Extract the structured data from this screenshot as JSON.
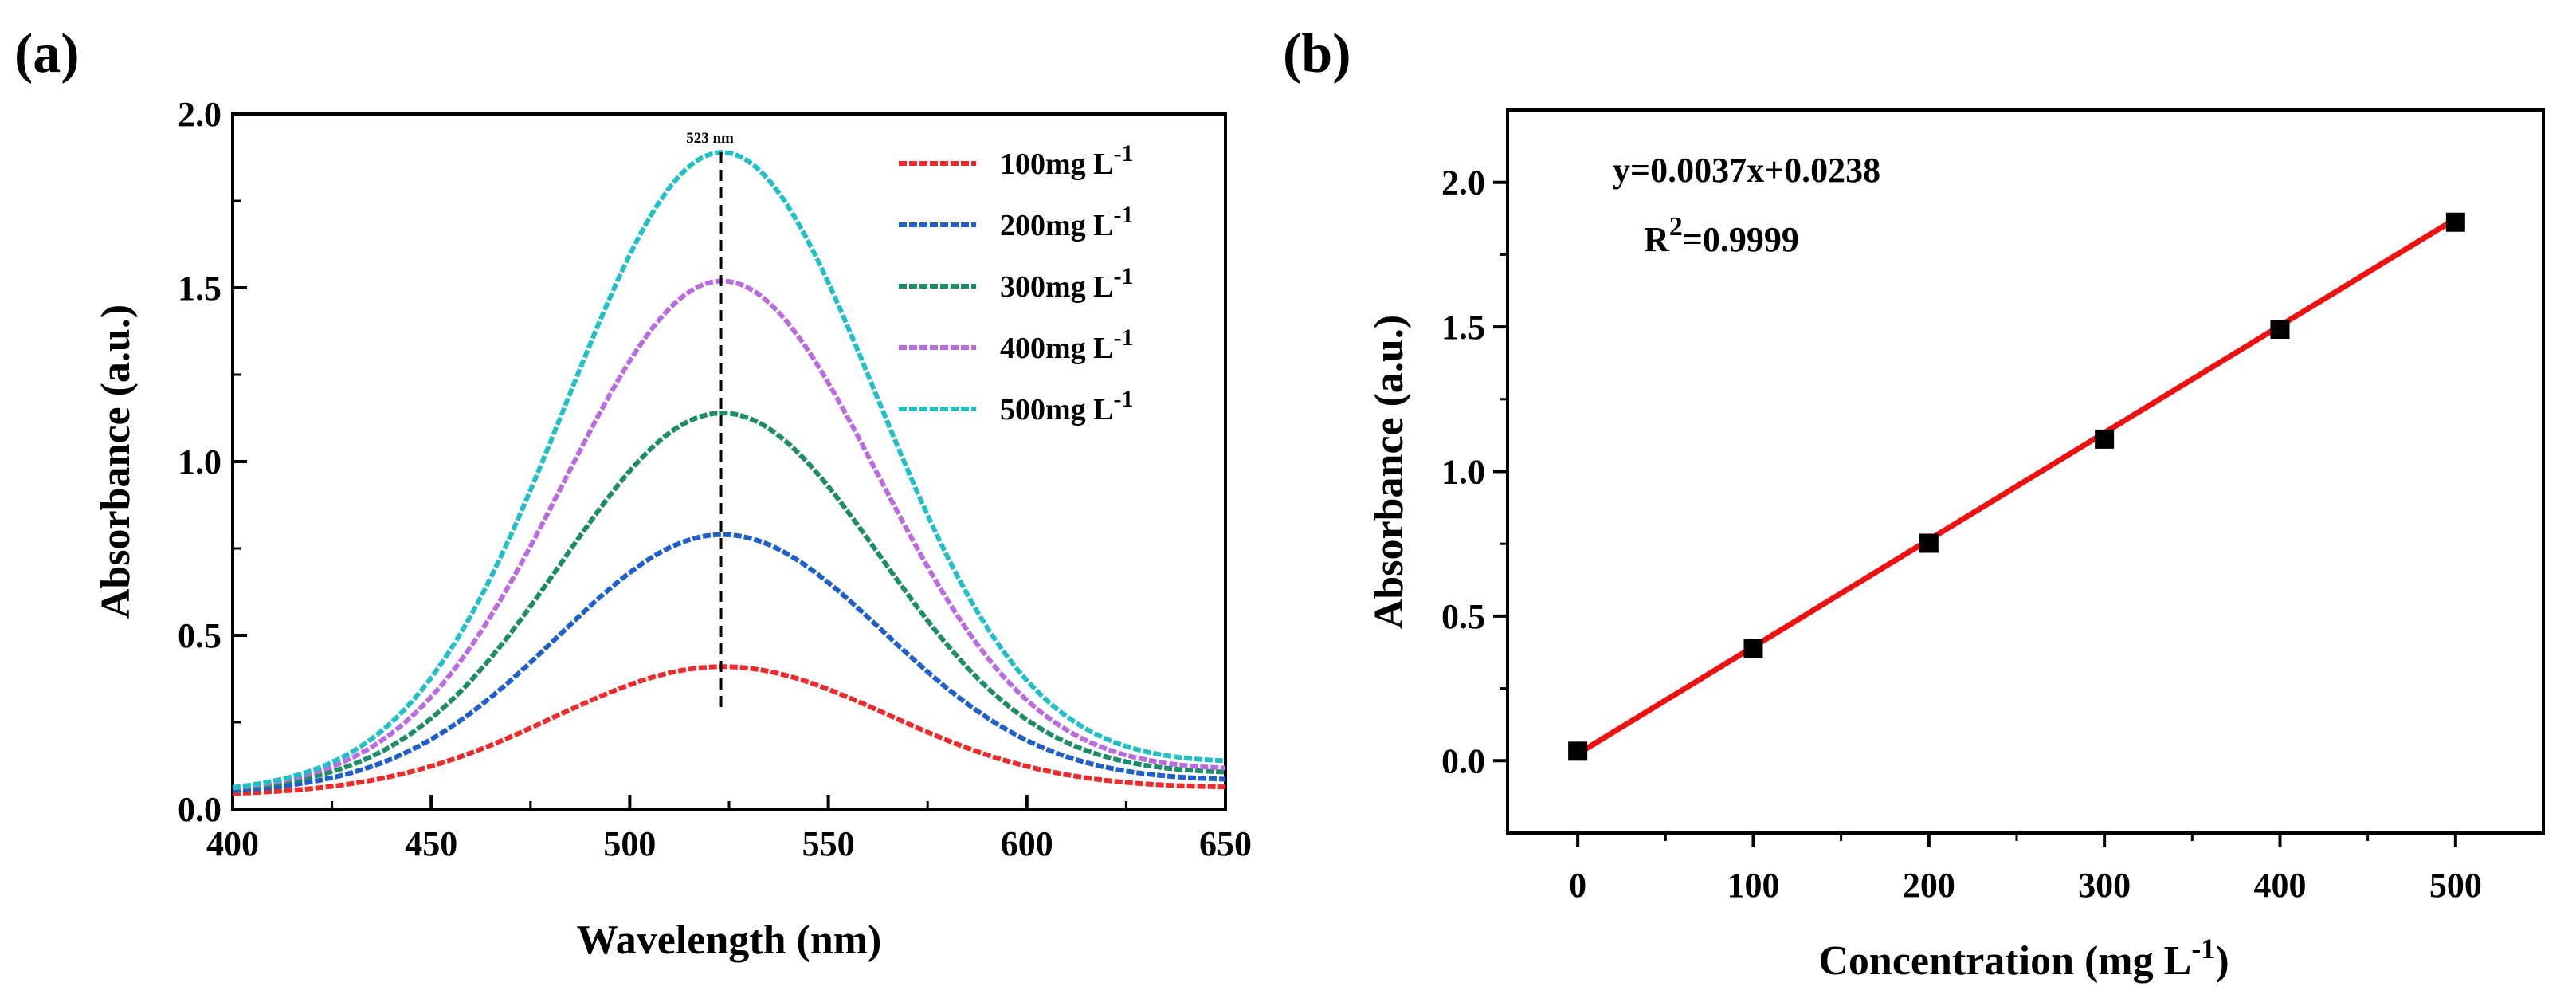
{
  "colors": {
    "s100": "#ee2a2a",
    "s200": "#1f5fcc",
    "s300": "#1d8c68",
    "s400": "#bb6be0",
    "s500": "#21c0c7",
    "fit": "#ee1111",
    "marker": "#000000"
  },
  "chart_data": [
    {
      "panel": "(a)",
      "type": "line",
      "xlabel": "Wavelength (nm)",
      "ylabel": "Absorbance (a.u.)",
      "xlim": [
        400,
        650
      ],
      "ylim": [
        0,
        2.0
      ],
      "xticks": [
        "400",
        "450",
        "500",
        "550",
        "600",
        "650"
      ],
      "yticks": [
        "0.0",
        "0.5",
        "1.0",
        "1.5",
        "2.0"
      ],
      "peak_wavelength": 523,
      "peak_label": "523 nm",
      "legend_position": "top-right",
      "series": [
        {
          "name": "100mg L",
          "unit_superscript": "-1",
          "color_key": "s100",
          "peak": 0.41,
          "baseline_left": 0.04,
          "baseline_right": 0.06,
          "sigma": 42
        },
        {
          "name": "200mg L",
          "unit_superscript": "-1",
          "color_key": "s200",
          "peak": 0.79,
          "baseline_left": 0.045,
          "baseline_right": 0.08,
          "sigma": 41
        },
        {
          "name": "300mg L",
          "unit_superscript": "-1",
          "color_key": "s300",
          "peak": 1.14,
          "baseline_left": 0.05,
          "baseline_right": 0.1,
          "sigma": 40
        },
        {
          "name": "400mg L",
          "unit_superscript": "-1",
          "color_key": "s400",
          "peak": 1.52,
          "baseline_left": 0.05,
          "baseline_right": 0.11,
          "sigma": 39.5
        },
        {
          "name": "500mg L",
          "unit_superscript": "-1",
          "color_key": "s500",
          "peak": 1.89,
          "baseline_left": 0.05,
          "baseline_right": 0.13,
          "sigma": 39
        }
      ]
    },
    {
      "panel": "(b)",
      "type": "scatter",
      "xlabel_main": "Concentration (mg L",
      "xlabel_sup": "-1",
      "xlabel_end": ")",
      "ylabel": "Absorbance (a.u.)",
      "xlim": [
        -40,
        550
      ],
      "ylim": [
        -0.25,
        2.25
      ],
      "xticks": [
        "0",
        "100",
        "200",
        "300",
        "400",
        "500"
      ],
      "yticks": [
        "0.0",
        "0.5",
        "1.0",
        "1.5",
        "2.0"
      ],
      "x": [
        0,
        100,
        200,
        300,
        400,
        500
      ],
      "y": [
        0.033,
        0.388,
        0.752,
        1.112,
        1.492,
        1.862
      ],
      "fit": {
        "slope": 0.0037,
        "intercept": 0.0238
      },
      "equation": "y=0.0037x+0.0238",
      "r2_prefix": "R",
      "r2_sup": "2",
      "r2_value": "=0.9999"
    }
  ]
}
